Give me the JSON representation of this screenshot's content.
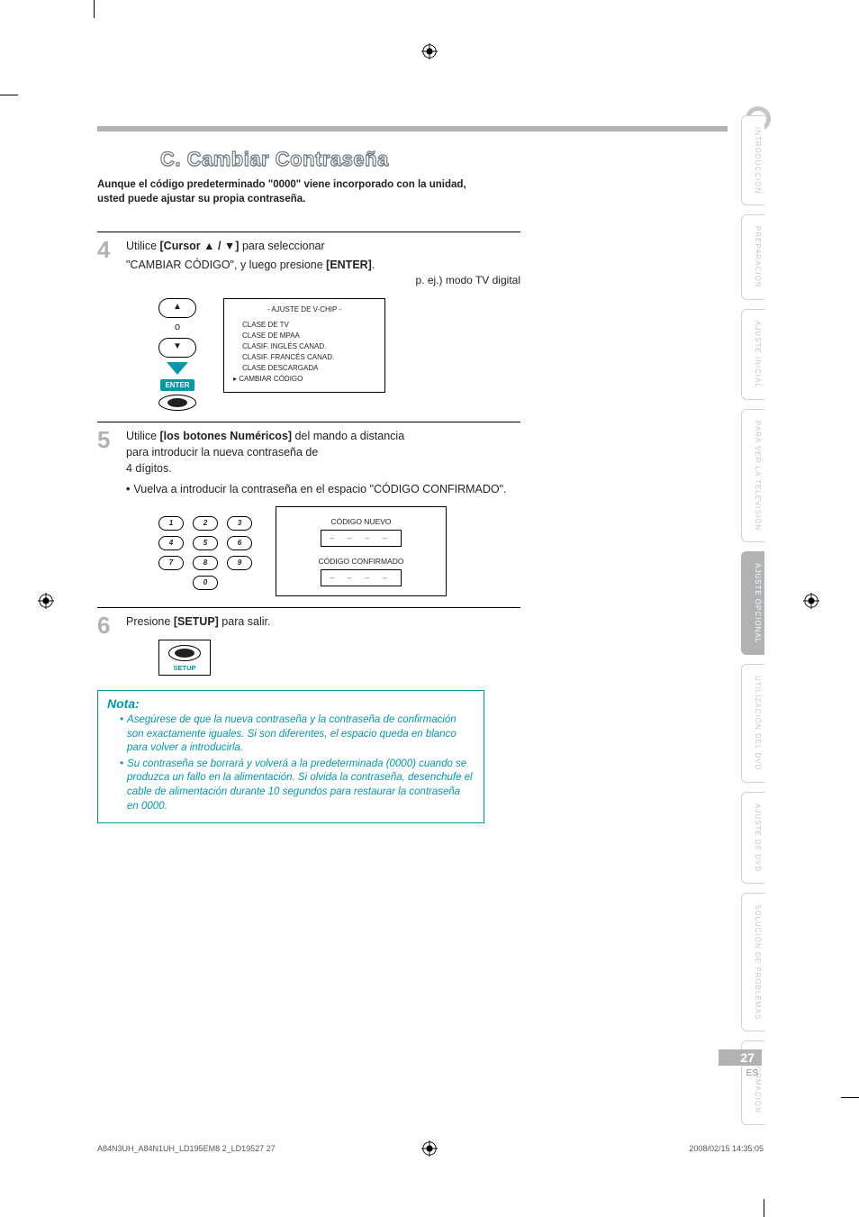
{
  "heading": "C.  Cambiar Contraseña",
  "intro_line1": "Aunque el código predeterminado \"0000\" viene incorporado con la unidad,",
  "intro_line2": "usted puede ajustar su propia contraseña.",
  "step4": {
    "num": "4",
    "pre": "Utilice ",
    "bold1": "[Cursor ▲ / ▼]",
    "mid": " para seleccionar",
    "line2a": "\"CAMBIAR CÓDIGO\", y luego presione ",
    "bold2": "[ENTER]",
    "line2b": ".",
    "caption": "p. ej.) modo TV digital",
    "o_label": "o",
    "enter_label": "ENTER",
    "screen_title": "- AJUSTE DE V-CHIP -",
    "screen_items": [
      "CLASE DE TV",
      "CLASE DE MPAA",
      "CLASIF. INGLÉS CANAD.",
      "CLASIF. FRANCÉS CANAD.",
      "CLASE DESCARGADA",
      "CAMBIAR CÓDIGO"
    ],
    "selected_index": 5
  },
  "step5": {
    "num": "5",
    "pre": "Utilice ",
    "bold1": "[los botones Numéricos]",
    "post": " del mando a distancia",
    "line2": "para introducir la nueva contraseña de",
    "line3": "4 dígitos.",
    "bullet": "Vuelva a introducir la contraseña en el espacio \"CÓDIGO CONFIRMADO\".",
    "keys": [
      "1",
      "2",
      "3",
      "4",
      "5",
      "6",
      "7",
      "8",
      "9",
      "0"
    ],
    "code_new_label": "CÓDIGO NUEVO",
    "code_confirm_label": "CÓDIGO CONFIRMADO",
    "placeholder": "– – – –"
  },
  "step6": {
    "num": "6",
    "pre": "Presione ",
    "bold1": "[SETUP]",
    "post": " para salir.",
    "setup_label": "SETUP"
  },
  "note": {
    "title": "Nota:",
    "items": [
      "Asegúrese de que la nueva contraseña y la contraseña de confirmación son exactamente iguales. Si son diferentes, el espacio queda en blanco para volver a introducirla.",
      "Su contraseña se borrará y volverá a la predeterminada (0000) cuando se produzca un fallo en la alimentación. Si olvida la contraseña, desenchufe el cable de alimentación durante 10 segundos para restaurar la contraseña en 0000."
    ]
  },
  "tabs": [
    {
      "label": "INTRODUCCIÓN",
      "active": false
    },
    {
      "label": "PREPARACIÓN",
      "active": false
    },
    {
      "label": "AJUSTE INICIAL",
      "active": false
    },
    {
      "label": "PARA VER LA TELEVISIÓN",
      "active": false
    },
    {
      "label": "AJUSTE OPCIONAL",
      "active": true
    },
    {
      "label": "UTILIZACIÓN DEL DVD",
      "active": false
    },
    {
      "label": "AJUSTE DE DVD",
      "active": false
    },
    {
      "label": "SOLUCIÓN DE PROBLEMAS",
      "active": false
    },
    {
      "label": "INFORMACIÓN",
      "active": false
    }
  ],
  "page_number": "27",
  "page_lang": "ES",
  "footer_left": "A84N3UH_A84N1UH_LD195EM8 2_LD19527   27",
  "footer_right": "2008/02/15   14:35:05",
  "colors": {
    "accent": "#0099a8",
    "gray": "#b0b2b4",
    "light_gray": "#c4c6c8",
    "text": "#231f20"
  }
}
